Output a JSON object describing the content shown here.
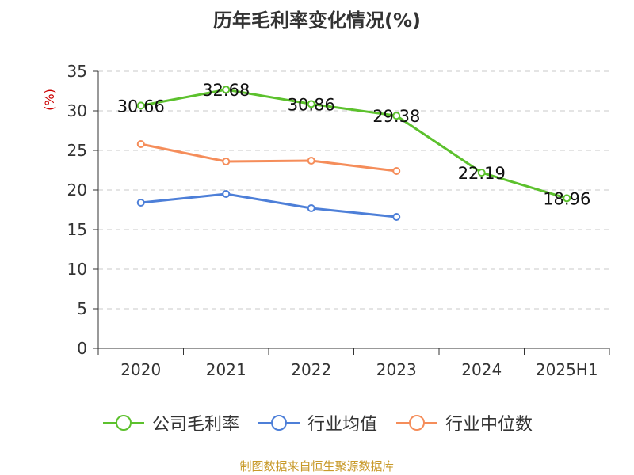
{
  "title": "历年毛利率变化情况(%)",
  "source": "制图数据来自恒生聚源数据库",
  "colors": {
    "company": "#5cc12d",
    "industry_avg": "#4d7fd8",
    "industry_median": "#f58d5a",
    "unit": "#cc0000",
    "source": "#c89a2a"
  },
  "chart_data": {
    "type": "line",
    "title": "历年毛利率变化情况(%)",
    "ylabel": "(%)",
    "xlabel": "",
    "categories": [
      "2020",
      "2021",
      "2022",
      "2023",
      "2024",
      "2025H1"
    ],
    "ylim": [
      0,
      35
    ],
    "yticks": [
      "0",
      "5",
      "10",
      "15",
      "20",
      "25",
      "30",
      "35"
    ],
    "grid": true,
    "legend_position": "bottom",
    "series": [
      {
        "name": "公司毛利率",
        "color": "#5cc12d",
        "values": [
          30.66,
          32.68,
          30.86,
          29.38,
          22.19,
          18.96
        ],
        "labels": [
          "30.66",
          "32.68",
          "30.86",
          "29.38",
          "22.19",
          "18.96"
        ]
      },
      {
        "name": "行业均值",
        "color": "#4d7fd8",
        "values": [
          18.4,
          19.5,
          17.7,
          16.6,
          null,
          null
        ]
      },
      {
        "name": "行业中位数",
        "color": "#f58d5a",
        "values": [
          25.8,
          23.6,
          23.7,
          22.4,
          null,
          null
        ]
      }
    ]
  }
}
